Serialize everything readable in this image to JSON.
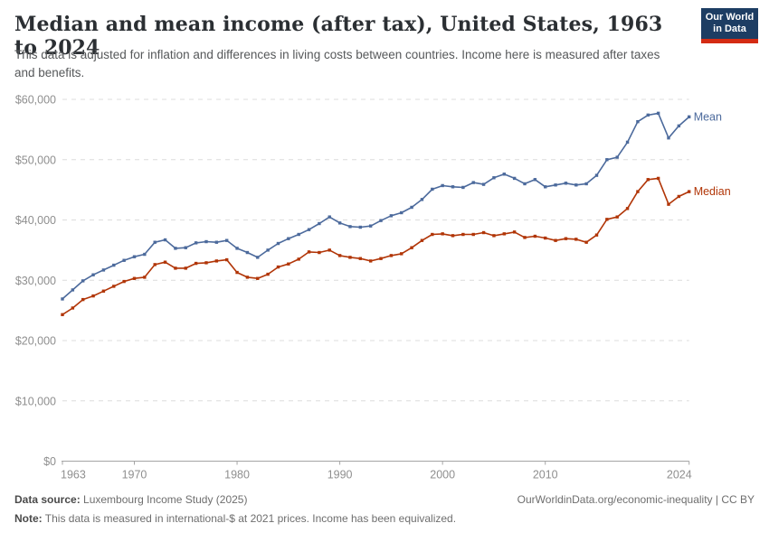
{
  "header": {
    "title": "Median and mean income (after tax), United States, 1963 to 2024",
    "subtitle": "This data is adjusted for inflation and differences in living costs between countries. Income here is measured after taxes and benefits.",
    "logo": {
      "line1": "Our World",
      "line2": "in Data"
    }
  },
  "chart_data": {
    "type": "line",
    "title": "Median and mean income (after tax), United States, 1963 to 2024",
    "xlabel": "",
    "ylabel": "",
    "x": [
      1963,
      1964,
      1965,
      1966,
      1967,
      1968,
      1969,
      1970,
      1971,
      1972,
      1973,
      1974,
      1975,
      1976,
      1977,
      1978,
      1979,
      1980,
      1981,
      1982,
      1983,
      1984,
      1985,
      1986,
      1987,
      1988,
      1989,
      1990,
      1991,
      1992,
      1993,
      1994,
      1995,
      1996,
      1997,
      1998,
      1999,
      2000,
      2001,
      2002,
      2003,
      2004,
      2005,
      2006,
      2007,
      2008,
      2009,
      2010,
      2011,
      2012,
      2013,
      2014,
      2015,
      2016,
      2017,
      2018,
      2019,
      2020,
      2021,
      2022,
      2023,
      2024
    ],
    "series": [
      {
        "name": "Mean",
        "color": "#4C6A9C",
        "values": [
          26900,
          28400,
          29900,
          30900,
          31700,
          32500,
          33300,
          33900,
          34300,
          36300,
          36700,
          35300,
          35400,
          36200,
          36400,
          36300,
          36600,
          35300,
          34600,
          33800,
          35000,
          36100,
          36900,
          37600,
          38400,
          39400,
          40500,
          39500,
          38900,
          38800,
          39000,
          39900,
          40700,
          41200,
          42100,
          43400,
          45100,
          45700,
          45500,
          45400,
          46200,
          45900,
          47000,
          47600,
          46900,
          46000,
          46700,
          45500,
          45800,
          46100,
          45800,
          46000,
          47400,
          50000,
          50400,
          52900,
          56300,
          57400,
          57700,
          53600,
          55600,
          57100
        ]
      },
      {
        "name": "Median",
        "color": "#B13507",
        "values": [
          24300,
          25400,
          26800,
          27400,
          28200,
          29000,
          29800,
          30300,
          30500,
          32600,
          33000,
          32000,
          32000,
          32800,
          32900,
          33200,
          33400,
          31300,
          30500,
          30300,
          31000,
          32200,
          32700,
          33500,
          34700,
          34600,
          35000,
          34100,
          33800,
          33600,
          33200,
          33600,
          34100,
          34400,
          35400,
          36600,
          37600,
          37700,
          37400,
          37600,
          37600,
          37900,
          37400,
          37700,
          38000,
          37100,
          37300,
          37000,
          36600,
          36900,
          36800,
          36300,
          37500,
          40100,
          40500,
          41900,
          44700,
          46700,
          46900,
          42600,
          43900,
          44700
        ]
      }
    ],
    "xlim": [
      1963,
      2024
    ],
    "ylim": [
      0,
      60000
    ],
    "yticks": [
      0,
      10000,
      20000,
      30000,
      40000,
      50000,
      60000
    ],
    "ytick_labels": [
      "$0",
      "$10,000",
      "$20,000",
      "$30,000",
      "$40,000",
      "$50,000",
      "$60,000"
    ],
    "xticks": [
      1963,
      1970,
      1980,
      1990,
      2000,
      2010,
      2024
    ],
    "grid": "horizontal-dashed",
    "legend_position": "line-end-labels"
  },
  "footer": {
    "source_label": "Data source:",
    "source_value": " Luxembourg Income Study (2025)",
    "link": "OurWorldinData.org/economic-inequality | CC BY",
    "note_label": "Note:",
    "note_value": " This data is measured in international-$ at 2021 prices. Income has been equivalized."
  },
  "colors": {
    "grid": "#dcdcdc",
    "axis": "#a5a5a5",
    "tick_text": "#8f8f8f",
    "logo_bg": "#1d3d63",
    "logo_accent": "#d42b13"
  }
}
